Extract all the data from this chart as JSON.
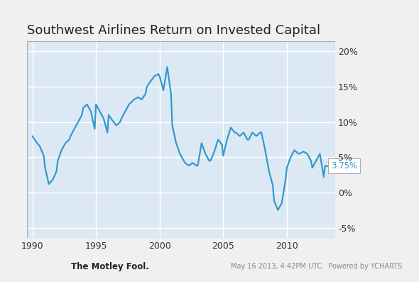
{
  "title": "Southwest Airlines Return on Invested Capital",
  "title_fontsize": 13,
  "plot_bg_color": "#dce9f5",
  "outer_bg_color": "#f0f0f0",
  "line_color": "#3399cc",
  "line_width": 1.6,
  "ylim": [
    -6.5,
    21.5
  ],
  "xlim": [
    1989.6,
    2013.8
  ],
  "annotation_value": "3.75%",
  "footer_left": "The Motley Fool.",
  "footer_right": "May 16 2013, 4:42PM UTC.  Powered by YCHARTS",
  "x": [
    1990.0,
    1990.3,
    1990.6,
    1990.9,
    1991.0,
    1991.3,
    1991.6,
    1991.9,
    1992.0,
    1992.3,
    1992.6,
    1992.9,
    1993.0,
    1993.3,
    1993.6,
    1993.9,
    1994.0,
    1994.3,
    1994.6,
    1994.9,
    1995.0,
    1995.3,
    1995.6,
    1995.9,
    1996.0,
    1996.3,
    1996.6,
    1996.9,
    1997.0,
    1997.3,
    1997.6,
    1997.9,
    1998.0,
    1998.3,
    1998.6,
    1998.9,
    1999.0,
    1999.3,
    1999.6,
    1999.9,
    2000.0,
    2000.3,
    2000.6,
    2000.9,
    2001.0,
    2001.3,
    2001.6,
    2001.9,
    2002.0,
    2002.3,
    2002.6,
    2002.9,
    2003.0,
    2003.3,
    2003.6,
    2003.9,
    2004.0,
    2004.3,
    2004.6,
    2004.9,
    2005.0,
    2005.3,
    2005.6,
    2005.9,
    2006.0,
    2006.3,
    2006.6,
    2006.9,
    2007.0,
    2007.3,
    2007.6,
    2007.9,
    2008.0,
    2008.3,
    2008.6,
    2008.9,
    2009.0,
    2009.3,
    2009.6,
    2009.9,
    2010.0,
    2010.3,
    2010.6,
    2010.9,
    2011.0,
    2011.3,
    2011.6,
    2011.9,
    2012.0,
    2012.3,
    2012.6,
    2012.9,
    2013.0,
    2013.3
  ],
  "y": [
    8.0,
    7.2,
    6.5,
    5.2,
    3.5,
    1.2,
    1.8,
    3.0,
    4.5,
    6.0,
    7.0,
    7.5,
    8.0,
    9.0,
    10.0,
    11.0,
    12.0,
    12.5,
    11.5,
    9.0,
    12.5,
    11.5,
    10.5,
    8.5,
    11.0,
    10.2,
    9.5,
    10.0,
    10.5,
    11.5,
    12.5,
    13.0,
    13.2,
    13.5,
    13.2,
    14.0,
    15.0,
    15.8,
    16.5,
    16.8,
    16.5,
    14.5,
    17.8,
    14.0,
    9.5,
    7.0,
    5.5,
    4.5,
    4.2,
    3.8,
    4.2,
    3.8,
    3.8,
    7.0,
    5.5,
    4.5,
    4.5,
    5.8,
    7.5,
    6.8,
    5.2,
    7.5,
    9.2,
    8.5,
    8.5,
    8.0,
    8.5,
    7.5,
    7.5,
    8.5,
    8.0,
    8.5,
    8.5,
    6.0,
    3.0,
    1.0,
    -1.2,
    -2.5,
    -1.5,
    1.8,
    3.5,
    5.0,
    6.0,
    5.5,
    5.5,
    5.8,
    5.5,
    4.5,
    3.5,
    4.5,
    5.5,
    2.2,
    3.75,
    3.75
  ]
}
